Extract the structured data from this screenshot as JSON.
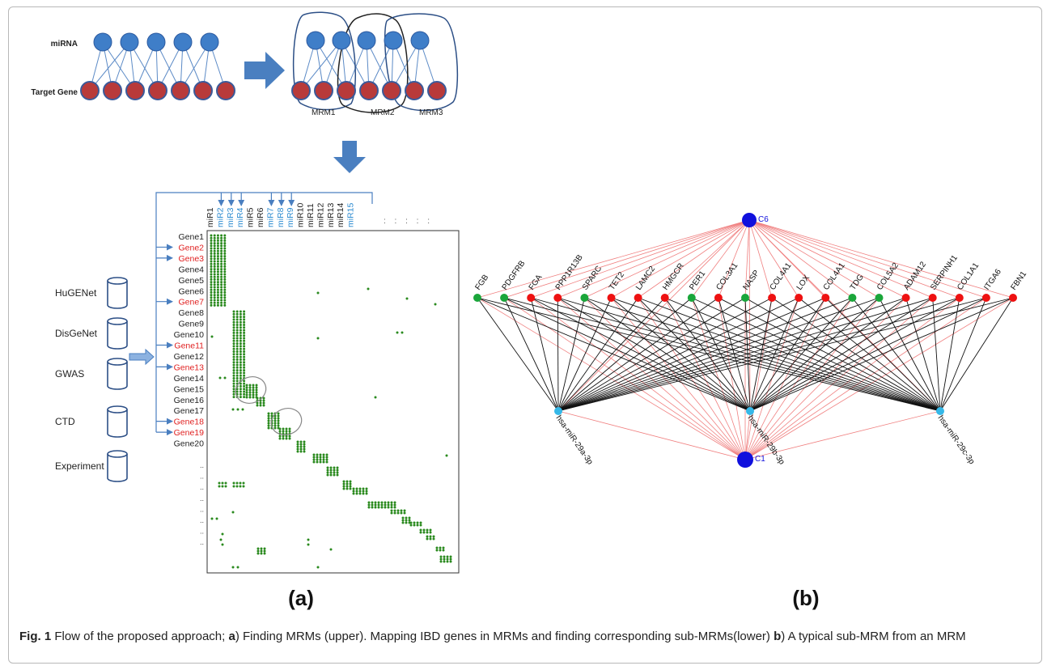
{
  "panel_a": {
    "top_labels": {
      "mirna": "miRNA",
      "target_gene": "Target Gene"
    },
    "mrm_labels": [
      "MRM1",
      "MRM2",
      "MRM3"
    ],
    "databases": [
      "HuGENet",
      "DisGeNet",
      "GWAS",
      "CTD",
      "Experiment"
    ],
    "mirna_columns": [
      "miR1",
      "miR2",
      "miR3",
      "miR4",
      "miR5",
      "miR6",
      "miR7",
      "miR8",
      "miR9",
      "miR10",
      "miR11",
      "miR12",
      "miR13",
      "miR14",
      "miR15"
    ],
    "highlighted_mirnas": [
      "miR2",
      "miR3",
      "miR4",
      "miR7",
      "miR8",
      "miR9",
      "miR15"
    ],
    "column_ellipsis": ": : : : :",
    "gene_rows": [
      "Gene1",
      "Gene2",
      "Gene3",
      "Gene4",
      "Gene5",
      "Gene6",
      "Gene7",
      "Gene8",
      "Gene9",
      "Gene10",
      "Gene11",
      "Gene12",
      "Gene13",
      "Gene14",
      "Gene15",
      "Gene16",
      "Gene17",
      "Gene18",
      "Gene19",
      "Gene20"
    ],
    "highlighted_genes": [
      "Gene2",
      "Gene3",
      "Gene7",
      "Gene11",
      "Gene13",
      "Gene18",
      "Gene19"
    ],
    "row_ellipsis": "..",
    "label": "(a)"
  },
  "panel_b": {
    "top_hub": "C6",
    "bottom_hub": "C1",
    "genes": [
      {
        "name": "FGB",
        "color": "green"
      },
      {
        "name": "PDGFRB",
        "color": "green"
      },
      {
        "name": "FGA",
        "color": "red"
      },
      {
        "name": "PPP1R13B",
        "color": "red"
      },
      {
        "name": "SPARC",
        "color": "green"
      },
      {
        "name": "TET2",
        "color": "red"
      },
      {
        "name": "LAMC2",
        "color": "red"
      },
      {
        "name": "HMGCR",
        "color": "red"
      },
      {
        "name": "PER1",
        "color": "green"
      },
      {
        "name": "COL3A1",
        "color": "red"
      },
      {
        "name": "NASP",
        "color": "green"
      },
      {
        "name": "COL4A1",
        "color": "red"
      },
      {
        "name": "LOX",
        "color": "red"
      },
      {
        "name": "COL4A1",
        "color": "red"
      },
      {
        "name": "TDG",
        "color": "green"
      },
      {
        "name": "COL5A2",
        "color": "green"
      },
      {
        "name": "ADAM12",
        "color": "red"
      },
      {
        "name": "SERPINH1",
        "color": "red"
      },
      {
        "name": "COL1A1",
        "color": "red"
      },
      {
        "name": "ITGA6",
        "color": "red"
      },
      {
        "name": "FBN1",
        "color": "red"
      }
    ],
    "mirnas": [
      "hsa-miR-29a-3p",
      "hsa-miR-29b-3p",
      "hsa-miR-29c-3p"
    ],
    "label": "(b)"
  },
  "colors": {
    "node_blue": "#3f7ec8",
    "node_red": "#b83a3a",
    "arrow_blue": "#4a7fc0",
    "matrix_green": "#2a8a1e",
    "gene_red": "#e02020",
    "mir_blue": "#2a8ad0",
    "hub_blue": "#1010dd",
    "net_green": "#1aa63a",
    "net_red": "#ee1111",
    "mir_node": "#35b8e8",
    "edge_pink": "#f08080"
  },
  "caption": {
    "fig": "Fig. 1",
    "text1": " Flow of the proposed approach; ",
    "a": "a",
    "text2": ") Finding MRMs (upper). Mapping IBD genes in MRMs and finding corresponding sub-MRMs(lower) ",
    "b": "b",
    "text3": ") A typical sub-MRM from an MRM"
  }
}
